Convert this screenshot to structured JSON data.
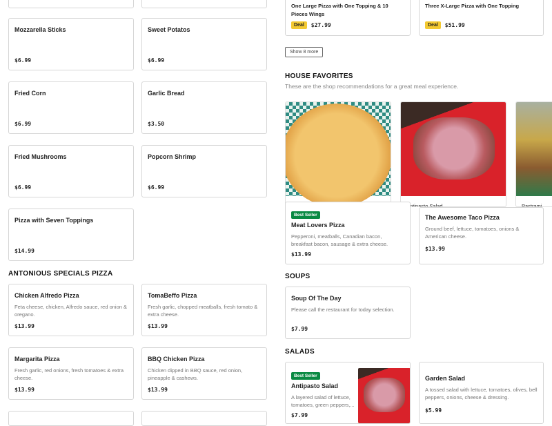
{
  "left_items": [
    {
      "name": "Mozzarella Sticks",
      "price": "$6.99"
    },
    {
      "name": "Sweet Potatos",
      "price": "$6.99"
    },
    {
      "name": "Fried Corn",
      "price": "$6.99"
    },
    {
      "name": "Garlic Bread",
      "price": "$3.50"
    },
    {
      "name": "Fried Mushrooms",
      "price": "$6.99"
    },
    {
      "name": "Popcorn Shrimp",
      "price": "$6.99"
    },
    {
      "name": "Pizza with Seven Toppings",
      "price": "$14.99"
    }
  ],
  "specials": {
    "title": "ANTONIOUS SPECIALS PIZZA",
    "items": [
      {
        "name": "Chicken Alfredo Pizza",
        "desc": "Feta cheese, chicken, Alfredo sauce, red onion & oregano.",
        "price": "$13.99"
      },
      {
        "name": "TomaBeffo Pizza",
        "desc": "Fresh garlic, chopped meatballs, fresh tomato & extra cheese.",
        "price": "$13.99"
      },
      {
        "name": "Margarita Pizza",
        "desc": "Fresh garlic, red onions, fresh tomatoes & extra cheese.",
        "price": "$13.99"
      },
      {
        "name": "BBQ Chicken Pizza",
        "desc": "Chicken dipped in BBQ sauce, red onion, pineapple & cashews.",
        "price": "$13.99"
      }
    ]
  },
  "deals": [
    {
      "name": "One Large Pizza with One Topping & 10 Pieces Wings",
      "tag": "Deal",
      "price": "$27.99"
    },
    {
      "name": "Three X-Large Pizza with One Topping",
      "tag": "Deal",
      "price": "$51.99"
    }
  ],
  "show_more": "Show 8 more",
  "favorites": {
    "title": "HOUSE FAVORITES",
    "subtitle": "These are the shop recommendations for a great meal experience.",
    "items": [
      {
        "name": "Cheese Pizza"
      },
      {
        "name": "Antipasto Salad"
      },
      {
        "name": "Pastrami"
      }
    ]
  },
  "pizzas": [
    {
      "badge": "Best Seller",
      "name": "Meat Lovers Pizza",
      "desc": "Pepperoni, meatballs, Canadian bacon, breakfast bacon, sausage & extra cheese.",
      "price": "$13.99"
    },
    {
      "name": "The Awesome Taco Pizza",
      "desc": "Ground beef, lettuce, tomatoes, onions & American cheese.",
      "price": "$13.99"
    }
  ],
  "soups": {
    "title": "SOUPS",
    "items": [
      {
        "name": "Soup Of The Day",
        "desc": "Please call the restaurant for today selection.",
        "price": "$7.99"
      }
    ]
  },
  "salads": {
    "title": "SALADS",
    "items": [
      {
        "badge": "Best Seller",
        "name": "Antipasto Salad",
        "desc": "A layered salad of lettuce, tomatoes, green peppers,...",
        "price": "$7.99"
      },
      {
        "name": "Garden Salad",
        "desc": "A tossed salad with lettuce, tomatoes, olives, bell peppers, onions, cheese & dressing.",
        "price": "$5.99"
      }
    ]
  },
  "colors": {
    "deal": "#f3c931",
    "best_seller": "#0a8a43"
  }
}
